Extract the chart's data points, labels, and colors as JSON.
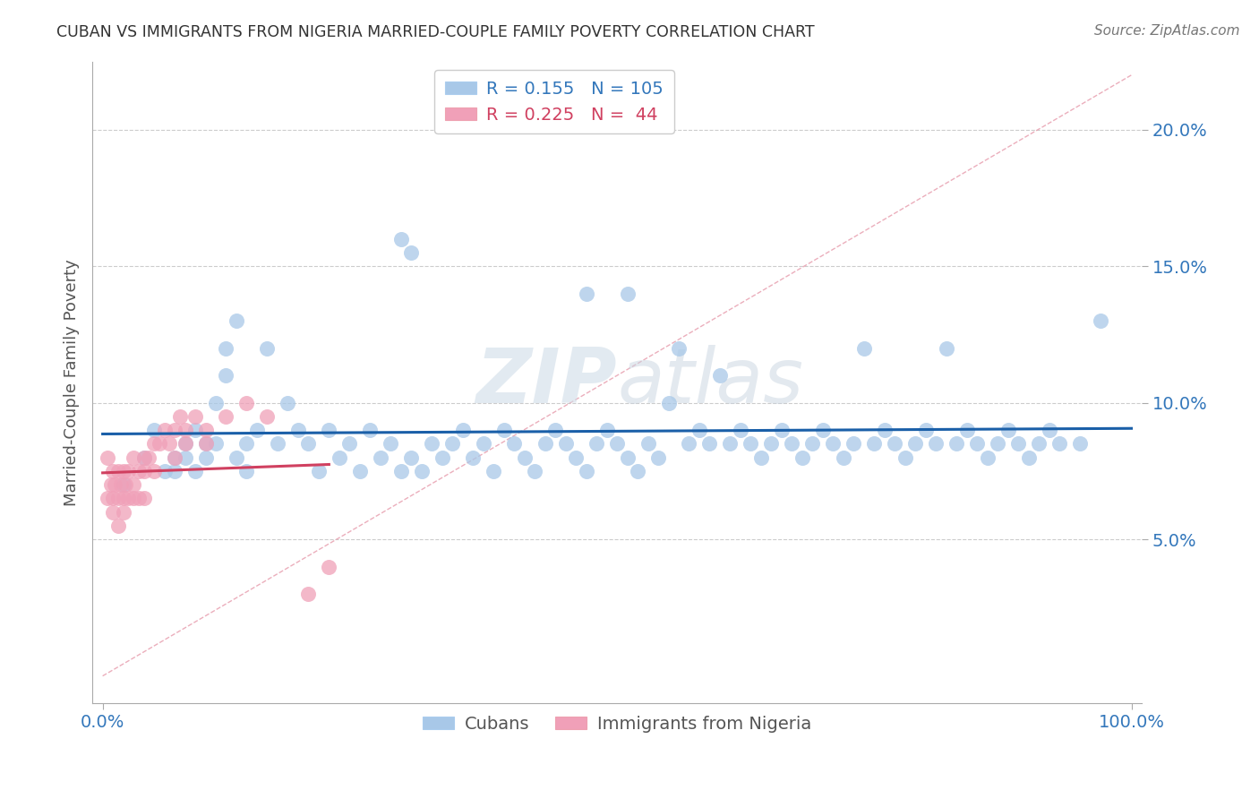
{
  "title": "CUBAN VS IMMIGRANTS FROM NIGERIA MARRIED-COUPLE FAMILY POVERTY CORRELATION CHART",
  "source": "Source: ZipAtlas.com",
  "ylabel": "Married-Couple Family Poverty",
  "yticks": [
    0.05,
    0.1,
    0.15,
    0.2
  ],
  "ytick_labels": [
    "5.0%",
    "10.0%",
    "15.0%",
    "20.0%"
  ],
  "xlim": [
    -0.01,
    1.01
  ],
  "ylim": [
    -0.01,
    0.225
  ],
  "watermark": "ZIPatlas",
  "blue_color": "#a8c8e8",
  "pink_color": "#f0a0b8",
  "blue_line_color": "#1a5fa8",
  "pink_line_color": "#d04060",
  "diag_line_color": "#e8a0b0",
  "grid_color": "#cccccc",
  "axis_label_color": "#3377bb",
  "title_color": "#333333",
  "cubans_x": [
    0.02,
    0.04,
    0.05,
    0.06,
    0.07,
    0.07,
    0.08,
    0.08,
    0.09,
    0.09,
    0.1,
    0.1,
    0.11,
    0.11,
    0.12,
    0.12,
    0.13,
    0.13,
    0.14,
    0.14,
    0.15,
    0.16,
    0.17,
    0.18,
    0.19,
    0.2,
    0.21,
    0.22,
    0.23,
    0.24,
    0.25,
    0.26,
    0.27,
    0.28,
    0.29,
    0.3,
    0.31,
    0.32,
    0.33,
    0.34,
    0.35,
    0.36,
    0.37,
    0.38,
    0.39,
    0.4,
    0.41,
    0.42,
    0.43,
    0.44,
    0.45,
    0.46,
    0.47,
    0.48,
    0.49,
    0.5,
    0.51,
    0.52,
    0.53,
    0.54,
    0.55,
    0.56,
    0.57,
    0.58,
    0.59,
    0.6,
    0.61,
    0.62,
    0.63,
    0.64,
    0.65,
    0.66,
    0.67,
    0.68,
    0.69,
    0.7,
    0.71,
    0.72,
    0.73,
    0.74,
    0.75,
    0.76,
    0.77,
    0.78,
    0.79,
    0.8,
    0.81,
    0.82,
    0.83,
    0.84,
    0.85,
    0.86,
    0.87,
    0.88,
    0.89,
    0.9,
    0.91,
    0.92,
    0.93,
    0.97,
    0.29,
    0.3,
    0.47,
    0.51,
    0.95
  ],
  "cubans_y": [
    0.07,
    0.08,
    0.09,
    0.075,
    0.08,
    0.075,
    0.085,
    0.08,
    0.09,
    0.075,
    0.085,
    0.08,
    0.1,
    0.085,
    0.12,
    0.11,
    0.13,
    0.08,
    0.085,
    0.075,
    0.09,
    0.12,
    0.085,
    0.1,
    0.09,
    0.085,
    0.075,
    0.09,
    0.08,
    0.085,
    0.075,
    0.09,
    0.08,
    0.085,
    0.075,
    0.08,
    0.075,
    0.085,
    0.08,
    0.085,
    0.09,
    0.08,
    0.085,
    0.075,
    0.09,
    0.085,
    0.08,
    0.075,
    0.085,
    0.09,
    0.085,
    0.08,
    0.075,
    0.085,
    0.09,
    0.085,
    0.08,
    0.075,
    0.085,
    0.08,
    0.1,
    0.12,
    0.085,
    0.09,
    0.085,
    0.11,
    0.085,
    0.09,
    0.085,
    0.08,
    0.085,
    0.09,
    0.085,
    0.08,
    0.085,
    0.09,
    0.085,
    0.08,
    0.085,
    0.12,
    0.085,
    0.09,
    0.085,
    0.08,
    0.085,
    0.09,
    0.085,
    0.12,
    0.085,
    0.09,
    0.085,
    0.08,
    0.085,
    0.09,
    0.085,
    0.08,
    0.085,
    0.09,
    0.085,
    0.13,
    0.16,
    0.155,
    0.14,
    0.14,
    0.085
  ],
  "nigeria_x": [
    0.005,
    0.005,
    0.008,
    0.01,
    0.01,
    0.01,
    0.012,
    0.015,
    0.015,
    0.015,
    0.018,
    0.02,
    0.02,
    0.02,
    0.022,
    0.025,
    0.025,
    0.03,
    0.03,
    0.03,
    0.035,
    0.035,
    0.04,
    0.04,
    0.04,
    0.045,
    0.05,
    0.05,
    0.055,
    0.06,
    0.065,
    0.07,
    0.07,
    0.075,
    0.08,
    0.08,
    0.09,
    0.1,
    0.1,
    0.12,
    0.14,
    0.16,
    0.2,
    0.22
  ],
  "nigeria_y": [
    0.08,
    0.065,
    0.07,
    0.075,
    0.065,
    0.06,
    0.07,
    0.075,
    0.065,
    0.055,
    0.07,
    0.075,
    0.065,
    0.06,
    0.07,
    0.075,
    0.065,
    0.08,
    0.07,
    0.065,
    0.075,
    0.065,
    0.08,
    0.075,
    0.065,
    0.08,
    0.085,
    0.075,
    0.085,
    0.09,
    0.085,
    0.09,
    0.08,
    0.095,
    0.09,
    0.085,
    0.095,
    0.09,
    0.085,
    0.095,
    0.1,
    0.095,
    0.03,
    0.04
  ],
  "blue_trend_x0": 0.0,
  "blue_trend_y0": 0.079,
  "blue_trend_x1": 1.0,
  "blue_trend_y1": 0.099,
  "pink_trend_x0": 0.0,
  "pink_trend_y0": 0.068,
  "pink_trend_x1": 0.22,
  "pink_trend_y1": 0.096
}
